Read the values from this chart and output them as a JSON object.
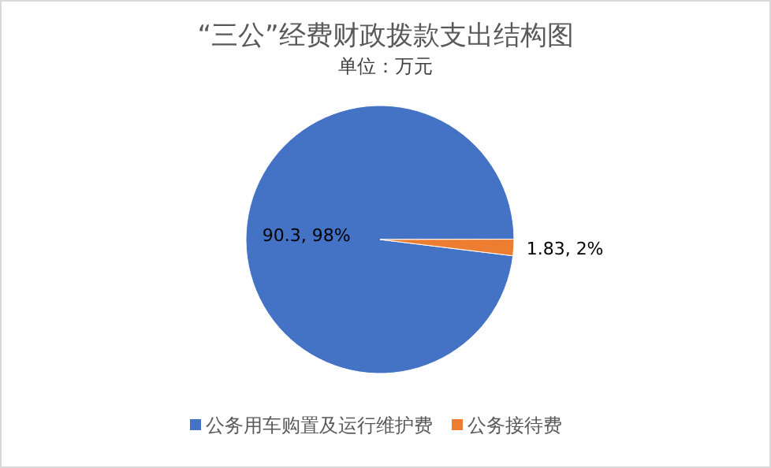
{
  "chart_data": {
    "type": "pie",
    "title": "“三公”经费财政拨款支出结构图",
    "subtitle": "单位：万元",
    "categories": [
      "公务用车购置及运行维护费",
      "公务接待费"
    ],
    "values": [
      90.3,
      1.83
    ],
    "colors": [
      "#4472c4",
      "#ed7d31"
    ],
    "value_labels": [
      "90.3, 98%",
      "1.83, 2%"
    ],
    "legend": "bottom"
  }
}
